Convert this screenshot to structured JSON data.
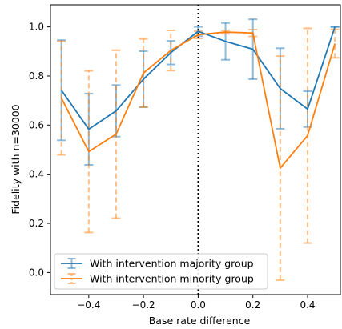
{
  "chart_data": {
    "type": "line",
    "title": "",
    "xlabel": "Base rate difference",
    "ylabel": "Fidelity with n=30000",
    "xlim": [
      -0.54,
      0.52
    ],
    "ylim": [
      -0.09,
      1.09
    ],
    "x_ticks": [
      -0.4,
      -0.2,
      0.0,
      0.2,
      0.4
    ],
    "x_tick_labels": [
      "−0.4",
      "−0.2",
      "0.0",
      "0.2",
      "0.4"
    ],
    "y_ticks": [
      0.0,
      0.2,
      0.4,
      0.6,
      0.8,
      1.0
    ],
    "y_tick_labels": [
      "0.0",
      "0.2",
      "0.4",
      "0.6",
      "0.8",
      "1.0"
    ],
    "grid": false,
    "legend_position": "lower-left",
    "vline_x": 0.0,
    "x": [
      -0.5,
      -0.4,
      -0.3,
      -0.2,
      -0.1,
      0.0,
      0.1,
      0.2,
      0.3,
      0.4,
      0.5
    ],
    "series": [
      {
        "name": "With intervention majority group",
        "color": "#1f77b4",
        "errorbar_style": "solid",
        "values": [
          0.742,
          0.583,
          0.658,
          0.787,
          0.895,
          0.982,
          0.941,
          0.909,
          0.749,
          0.665,
          1.0
        ],
        "lower": [
          0.538,
          0.438,
          0.553,
          0.673,
          0.847,
          0.962,
          0.866,
          0.787,
          0.585,
          0.592,
          1.0
        ],
        "upper": [
          0.946,
          0.728,
          0.763,
          0.901,
          0.943,
          1.0,
          1.016,
          1.031,
          0.913,
          0.738,
          1.0
        ]
      },
      {
        "name": "With intervention minority group",
        "color": "#ff7f0e",
        "errorbar_style": "dashed",
        "values": [
          0.71,
          0.492,
          0.563,
          0.812,
          0.904,
          0.968,
          0.979,
          0.975,
          0.425,
          0.557,
          0.932
        ],
        "lower": [
          0.479,
          0.163,
          0.221,
          0.673,
          0.822,
          0.953,
          0.972,
          0.961,
          -0.031,
          0.12,
          0.874
        ],
        "upper": [
          0.941,
          0.821,
          0.905,
          0.951,
          0.986,
          0.983,
          0.986,
          0.989,
          0.881,
          0.994,
          0.99
        ]
      }
    ]
  }
}
